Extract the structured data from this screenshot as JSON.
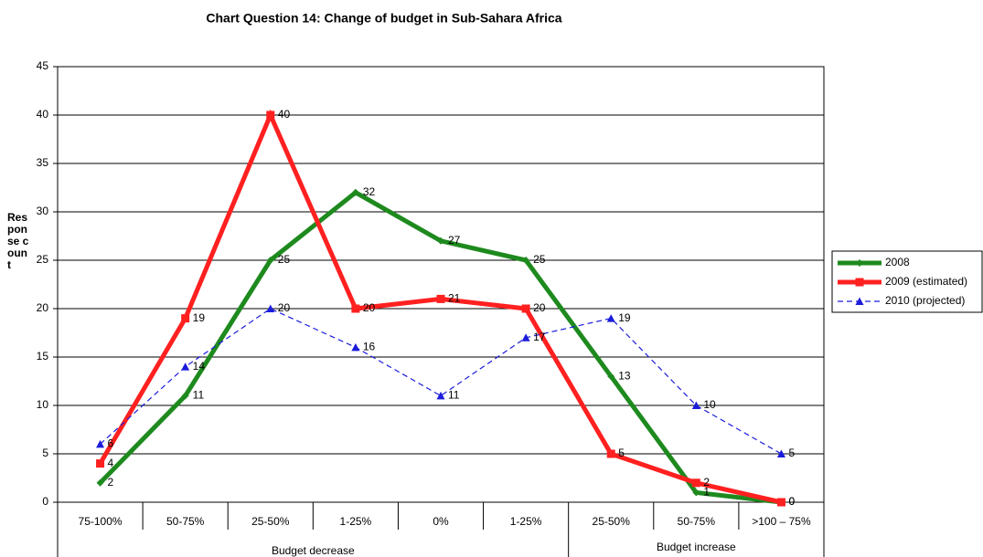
{
  "chart_data": {
    "type": "line",
    "title": "Chart Question 14: Change of budget in Sub-Sahara Africa",
    "ylabel": "Response count",
    "categories": [
      "75-100%",
      "50-75%",
      "25-50%",
      "1-25%",
      "0%",
      "1-25%",
      "25-50%",
      "50-75%",
      ">100 – 75%"
    ],
    "x_groups": [
      "Budget decrease",
      "Budget increase"
    ],
    "series": [
      {
        "name": "2008",
        "color": "#1e8a1e",
        "values": [
          2,
          11,
          25,
          32,
          27,
          25,
          13,
          1,
          0
        ]
      },
      {
        "name": "2009 (estimated)",
        "color": "#ff2020",
        "values": [
          4,
          19,
          40,
          20,
          21,
          20,
          5,
          2,
          0
        ]
      },
      {
        "name": "2010 (projected)",
        "color": "#1c1cdc",
        "values": [
          6,
          14,
          20,
          16,
          11,
          17,
          19,
          10,
          5
        ]
      }
    ],
    "ylim": [
      0,
      45
    ],
    "yticks": [
      0,
      5,
      10,
      15,
      20,
      25,
      30,
      35,
      40,
      45
    ],
    "grid": true,
    "legend": "right"
  }
}
